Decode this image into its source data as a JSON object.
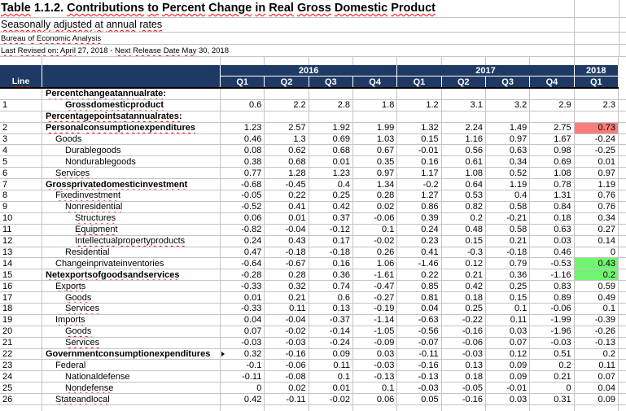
{
  "meta": {
    "title": "Table 1.1.2. Contributions to Percent Change in Real Gross Domestic Product",
    "subtitle": "Seasonally adjusted at annual rates",
    "source": "Bureau of Economic Analysis",
    "revision_note": "Last Revised on: April 27, 2018 - Next Release Date May 30, 2018"
  },
  "colors": {
    "header_bg": "#1e3a64",
    "highlight_red": "#fa7d7d",
    "highlight_green": "#70f570",
    "spellcheck_underline": "#ff0000"
  },
  "table": {
    "line_header": "Line",
    "year_groups": [
      {
        "label": "2016",
        "span": 4
      },
      {
        "label": "2017",
        "span": 4
      },
      {
        "label": "2018",
        "span": 1
      }
    ],
    "quarter_headers": [
      "Q1",
      "Q2",
      "Q3",
      "Q4",
      "Q1",
      "Q2",
      "Q3",
      "Q4",
      "Q1"
    ],
    "rows": [
      {
        "line": "",
        "label": "Percent change at annual rate:",
        "bold": true,
        "indent": 0,
        "section": true,
        "values": []
      },
      {
        "line": "1",
        "label": "Gross domestic product",
        "bold": true,
        "indent": 2,
        "values": [
          "0.6",
          "2.2",
          "2.8",
          "1.8",
          "1.2",
          "3.1",
          "3.2",
          "2.9",
          "2.3"
        ]
      },
      {
        "line": "",
        "label": "Percentage points at annual rates:",
        "bold": true,
        "indent": 0,
        "section": true,
        "values": []
      },
      {
        "line": "2",
        "label": "Personal consumption expenditures",
        "bold": true,
        "indent": 0,
        "values": [
          "1.23",
          "2.57",
          "1.92",
          "1.99",
          "1.32",
          "2.24",
          "1.49",
          "2.75",
          "0.73"
        ],
        "highlight_col": 8,
        "highlight": "red"
      },
      {
        "line": "3",
        "label": "Goods",
        "bold": false,
        "indent": 1,
        "values": [
          "0.46",
          "1.3",
          "0.69",
          "1.03",
          "0.15",
          "1.16",
          "0.97",
          "1.67",
          "-0.24"
        ]
      },
      {
        "line": "4",
        "label": "Durable goods",
        "bold": false,
        "indent": 2,
        "values": [
          "0.08",
          "0.62",
          "0.68",
          "0.67",
          "-0.01",
          "0.56",
          "0.63",
          "0.98",
          "-0.25"
        ]
      },
      {
        "line": "5",
        "label": "Nondurable goods",
        "bold": false,
        "indent": 2,
        "values": [
          "0.38",
          "0.68",
          "0.01",
          "0.35",
          "0.16",
          "0.61",
          "0.34",
          "0.69",
          "0.01"
        ]
      },
      {
        "line": "6",
        "label": "Services",
        "bold": false,
        "indent": 1,
        "values": [
          "0.77",
          "1.28",
          "1.23",
          "0.97",
          "1.17",
          "1.08",
          "0.52",
          "1.08",
          "0.97"
        ]
      },
      {
        "line": "7",
        "label": "Gross private domestic investment",
        "bold": true,
        "indent": 0,
        "values": [
          "-0.68",
          "-0.45",
          "0.4",
          "1.34",
          "-0.2",
          "0.64",
          "1.19",
          "0.78",
          "1.19"
        ]
      },
      {
        "line": "8",
        "label": "Fixed investment",
        "bold": false,
        "indent": 1,
        "values": [
          "-0.05",
          "0.22",
          "0.25",
          "0.28",
          "1.27",
          "0.53",
          "0.4",
          "1.31",
          "0.76"
        ]
      },
      {
        "line": "9",
        "label": "Nonresidential",
        "bold": false,
        "indent": 2,
        "values": [
          "-0.52",
          "0.41",
          "0.42",
          "0.02",
          "0.86",
          "0.82",
          "0.58",
          "0.84",
          "0.76"
        ]
      },
      {
        "line": "10",
        "label": "Structures",
        "bold": false,
        "indent": 3,
        "values": [
          "0.06",
          "0.01",
          "0.37",
          "-0.06",
          "0.39",
          "0.2",
          "-0.21",
          "0.18",
          "0.34"
        ]
      },
      {
        "line": "11",
        "label": "Equipment",
        "bold": false,
        "indent": 3,
        "values": [
          "-0.82",
          "-0.04",
          "-0.12",
          "0.1",
          "0.24",
          "0.48",
          "0.58",
          "0.63",
          "0.27"
        ]
      },
      {
        "line": "12",
        "label": "Intellectual property products",
        "bold": false,
        "indent": 3,
        "values": [
          "0.24",
          "0.43",
          "0.17",
          "-0.02",
          "0.23",
          "0.15",
          "0.21",
          "0.03",
          "0.14"
        ]
      },
      {
        "line": "13",
        "label": "Residential",
        "bold": false,
        "indent": 2,
        "values": [
          "0.47",
          "-0.18",
          "-0.18",
          "0.26",
          "0.41",
          "-0.3",
          "-0.18",
          "0.46",
          "0"
        ]
      },
      {
        "line": "14",
        "label": "Change in private inventories",
        "bold": false,
        "indent": 1,
        "values": [
          "-0.64",
          "-0.67",
          "0.16",
          "1.06",
          "-1.46",
          "0.12",
          "0.79",
          "-0.53",
          "0.43"
        ],
        "highlight_col": 8,
        "highlight": "green"
      },
      {
        "line": "15",
        "label": "Net exports of goods and services",
        "bold": true,
        "indent": 0,
        "values": [
          "-0.28",
          "0.28",
          "0.36",
          "-1.61",
          "0.22",
          "0.21",
          "0.36",
          "-1.16",
          "0.2"
        ],
        "highlight_col": 8,
        "highlight": "green"
      },
      {
        "line": "16",
        "label": "Exports",
        "bold": false,
        "indent": 1,
        "values": [
          "-0.33",
          "0.32",
          "0.74",
          "-0.47",
          "0.85",
          "0.42",
          "0.25",
          "0.83",
          "0.59"
        ]
      },
      {
        "line": "17",
        "label": "Goods",
        "bold": false,
        "indent": 2,
        "values": [
          "0.01",
          "0.21",
          "0.6",
          "-0.27",
          "0.81",
          "0.18",
          "0.15",
          "0.89",
          "0.49"
        ]
      },
      {
        "line": "18",
        "label": "Services",
        "bold": false,
        "indent": 2,
        "values": [
          "-0.33",
          "0.11",
          "0.13",
          "-0.19",
          "0.04",
          "0.25",
          "0.1",
          "-0.06",
          "0.1"
        ]
      },
      {
        "line": "19",
        "label": "Imports",
        "bold": false,
        "indent": 1,
        "values": [
          "0.04",
          "-0.04",
          "-0.37",
          "-1.14",
          "-0.63",
          "-0.22",
          "0.11",
          "-1.99",
          "-0.39"
        ]
      },
      {
        "line": "20",
        "label": "Goods",
        "bold": false,
        "indent": 2,
        "values": [
          "0.07",
          "-0.02",
          "-0.14",
          "-1.05",
          "-0.56",
          "-0.16",
          "0.03",
          "-1.96",
          "-0.26"
        ]
      },
      {
        "line": "21",
        "label": "Services",
        "bold": false,
        "indent": 2,
        "values": [
          "-0.03",
          "-0.03",
          "-0.24",
          "-0.09",
          "-0.07",
          "-0.06",
          "0.07",
          "-0.03",
          "-0.13"
        ]
      },
      {
        "line": "22",
        "label": "Government consumption expenditures",
        "bold": true,
        "indent": 0,
        "truncated": true,
        "values": [
          "0.32",
          "-0.16",
          "0.09",
          "0.03",
          "-0.11",
          "-0.03",
          "0.12",
          "0.51",
          "0.2"
        ]
      },
      {
        "line": "23",
        "label": "Federal",
        "bold": false,
        "indent": 1,
        "values": [
          "-0.1",
          "-0.06",
          "0.11",
          "-0.03",
          "-0.16",
          "0.13",
          "0.09",
          "0.2",
          "0.11"
        ]
      },
      {
        "line": "24",
        "label": "National defense",
        "bold": false,
        "indent": 2,
        "values": [
          "-0.11",
          "-0.08",
          "0.1",
          "-0.13",
          "-0.13",
          "0.18",
          "0.09",
          "0.21",
          "0.07"
        ]
      },
      {
        "line": "25",
        "label": "Nondefense",
        "bold": false,
        "indent": 2,
        "values": [
          "0",
          "0.02",
          "0.01",
          "0.1",
          "-0.03",
          "-0.05",
          "-0.01",
          "0",
          "0.04"
        ]
      },
      {
        "line": "26",
        "label": "State and local",
        "bold": false,
        "indent": 1,
        "values": [
          "0.42",
          "-0.11",
          "-0.02",
          "0.06",
          "0.05",
          "-0.16",
          "0.03",
          "0.31",
          "0.09"
        ]
      }
    ]
  }
}
